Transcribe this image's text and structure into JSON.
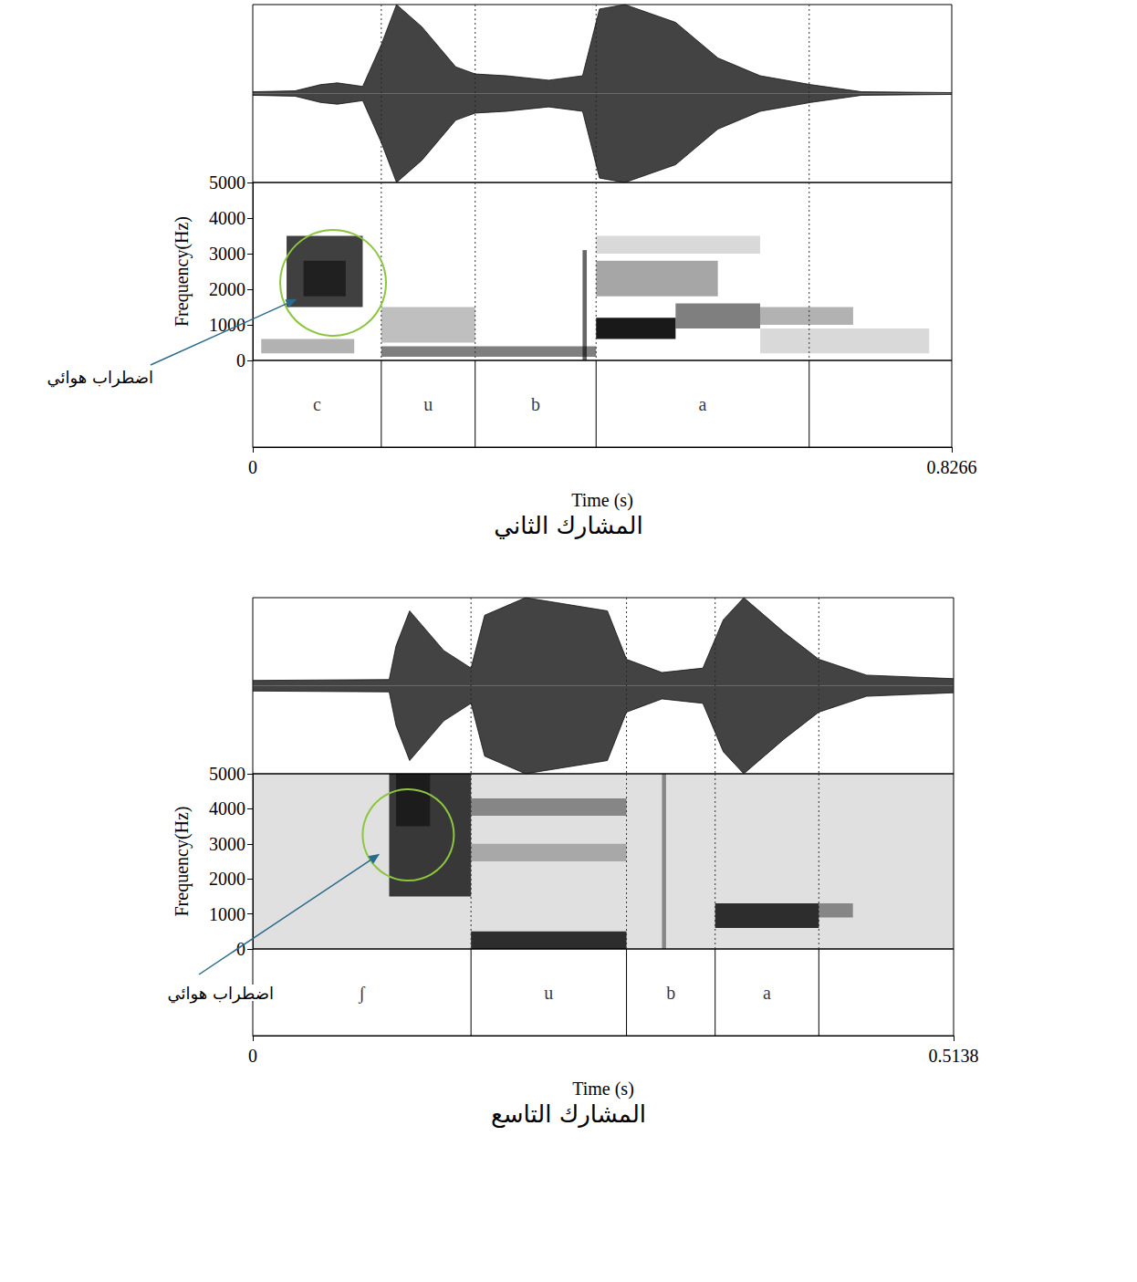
{
  "chart_data": [
    {
      "type": "spectrogram",
      "title": "المشارك الثاني",
      "xlabel": "Time (s)",
      "ylabel": "Frequency(Hz)",
      "xlim": [
        0,
        0.8266
      ],
      "xticks": [
        0,
        0.8266
      ],
      "ylim": [
        0,
        5000
      ],
      "yticks": [
        0,
        1000,
        2000,
        3000,
        4000,
        5000
      ],
      "grid": false,
      "segments": [
        {
          "label": "c",
          "start": 0,
          "end": 0.152
        },
        {
          "label": "u",
          "start": 0.152,
          "end": 0.263
        },
        {
          "label": "b",
          "start": 0.263,
          "end": 0.406
        },
        {
          "label": "a",
          "start": 0.406,
          "end": 0.658
        }
      ],
      "annotation": {
        "text": "اضطراب هوائي",
        "x": 0.095,
        "y": 2180
      },
      "waveform": {
        "x": [
          0,
          0.05,
          0.08,
          0.1,
          0.13,
          0.152,
          0.17,
          0.2,
          0.24,
          0.263,
          0.3,
          0.35,
          0.39,
          0.41,
          0.44,
          0.5,
          0.55,
          0.6,
          0.66,
          0.72,
          0.8266
        ],
        "amplitude": [
          0.02,
          0.03,
          0.1,
          0.12,
          0.08,
          0.55,
          1.0,
          0.75,
          0.3,
          0.22,
          0.2,
          0.15,
          0.2,
          0.95,
          1.0,
          0.8,
          0.4,
          0.2,
          0.1,
          0.02,
          0.01
        ]
      },
      "energy": [
        {
          "x0": 0.01,
          "x1": 0.12,
          "y0": 200,
          "y1": 600,
          "level": 0.3
        },
        {
          "x0": 0.04,
          "x1": 0.13,
          "y0": 1500,
          "y1": 3500,
          "level": 0.75
        },
        {
          "x0": 0.06,
          "x1": 0.11,
          "y0": 1800,
          "y1": 2800,
          "level": 0.5
        },
        {
          "x0": 0.152,
          "x1": 0.263,
          "y0": 500,
          "y1": 1500,
          "level": 0.25
        },
        {
          "x0": 0.152,
          "x1": 0.406,
          "y0": 100,
          "y1": 400,
          "level": 0.5
        },
        {
          "x0": 0.39,
          "x1": 0.395,
          "y0": 0,
          "y1": 3100,
          "level": 0.6
        },
        {
          "x0": 0.406,
          "x1": 0.5,
          "y0": 600,
          "y1": 1200,
          "level": 0.9
        },
        {
          "x0": 0.406,
          "x1": 0.55,
          "y0": 1800,
          "y1": 2800,
          "level": 0.35
        },
        {
          "x0": 0.406,
          "x1": 0.6,
          "y0": 3000,
          "y1": 3500,
          "level": 0.15
        },
        {
          "x0": 0.5,
          "x1": 0.6,
          "y0": 900,
          "y1": 1600,
          "level": 0.5
        },
        {
          "x0": 0.6,
          "x1": 0.71,
          "y0": 1000,
          "y1": 1500,
          "level": 0.3
        },
        {
          "x0": 0.6,
          "x1": 0.8,
          "y0": 200,
          "y1": 900,
          "level": 0.15
        }
      ]
    },
    {
      "type": "spectrogram",
      "title": "المشارك التاسع",
      "xlabel": "Time (s)",
      "ylabel": "Frequency(Hz)",
      "xlim": [
        0,
        0.5138
      ],
      "xticks": [
        0,
        0.5138
      ],
      "ylim": [
        0,
        5000
      ],
      "yticks": [
        0,
        1000,
        2000,
        3000,
        4000,
        5000
      ],
      "grid": false,
      "segments": [
        {
          "label": "ʃ",
          "start": 0,
          "end": 0.16
        },
        {
          "label": "u",
          "start": 0.16,
          "end": 0.274
        },
        {
          "label": "b",
          "start": 0.274,
          "end": 0.339
        },
        {
          "label": "a",
          "start": 0.339,
          "end": 0.415
        }
      ],
      "annotation": {
        "text": "اضطراب هوائي",
        "x": 0.114,
        "y": 3255
      },
      "waveform": {
        "x": [
          0,
          0.1,
          0.105,
          0.115,
          0.14,
          0.16,
          0.17,
          0.2,
          0.26,
          0.274,
          0.3,
          0.33,
          0.345,
          0.36,
          0.39,
          0.415,
          0.45,
          0.5138
        ],
        "amplitude": [
          0.06,
          0.07,
          0.45,
          0.85,
          0.4,
          0.2,
          0.8,
          1.0,
          0.85,
          0.3,
          0.15,
          0.2,
          0.75,
          1.0,
          0.6,
          0.3,
          0.12,
          0.08
        ]
      },
      "energy": [
        {
          "x0": 0,
          "x1": 0.5138,
          "y0": 0,
          "y1": 5000,
          "level": 0.12
        },
        {
          "x0": 0.1,
          "x1": 0.16,
          "y0": 1500,
          "y1": 5000,
          "level": 0.75
        },
        {
          "x0": 0.105,
          "x1": 0.13,
          "y0": 3500,
          "y1": 5000,
          "level": 0.5
        },
        {
          "x0": 0.16,
          "x1": 0.274,
          "y0": 0,
          "y1": 500,
          "level": 0.8
        },
        {
          "x0": 0.16,
          "x1": 0.274,
          "y0": 3800,
          "y1": 4300,
          "level": 0.4
        },
        {
          "x0": 0.16,
          "x1": 0.274,
          "y0": 2500,
          "y1": 3000,
          "level": 0.25
        },
        {
          "x0": 0.3,
          "x1": 0.303,
          "y0": 0,
          "y1": 5000,
          "level": 0.4
        },
        {
          "x0": 0.339,
          "x1": 0.415,
          "y0": 600,
          "y1": 1300,
          "level": 0.8
        },
        {
          "x0": 0.415,
          "x1": 0.44,
          "y0": 900,
          "y1": 1300,
          "level": 0.4
        }
      ]
    }
  ]
}
